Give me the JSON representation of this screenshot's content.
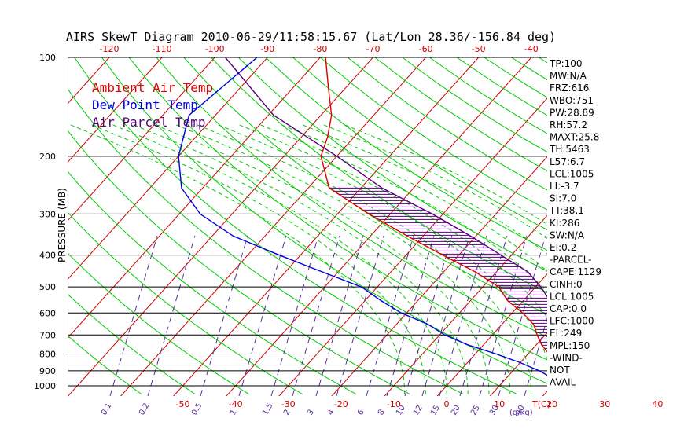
{
  "title": "AIRS SkewT Diagram 2010-06-29/11:58:15.67 (Lat/Lon 28.36/-156.84 deg)",
  "colors": {
    "ambient": "#dd0000",
    "dewpoint": "#0000dd",
    "parcel": "#55007a",
    "isotherm": "#cc0000",
    "dry_adiabat": "#00cc00",
    "moist_adiabat": "#00cc00",
    "mixing_ratio": "#5a2f9c",
    "isobar": "#000000",
    "cape_hatch": "#55007a"
  },
  "chart_data": {
    "type": "skewt",
    "title": "AIRS SkewT Diagram 2010-06-29/11:58:15.67 (Lat/Lon 28.36/-156.84 deg)",
    "ylabel": "PRESSURE (MB)",
    "xlabel_bottom_unit": "T(C)",
    "mixing_ratio_unit": "(g/kg)",
    "pressure_levels": [
      100,
      200,
      300,
      400,
      500,
      600,
      700,
      800,
      900,
      1000
    ],
    "pressure_range": [
      100,
      1050
    ],
    "top_temp_ticks": [
      -120,
      -110,
      -100,
      -90,
      -80,
      -70,
      -60,
      -50,
      -40
    ],
    "bottom_temp_ticks": [
      -50,
      -40,
      -30,
      -20,
      -10,
      0,
      10,
      20,
      30,
      40
    ],
    "mixing_ratio_ticks": [
      "0.1",
      "0.2",
      "0.5",
      "1",
      "1.5",
      "2",
      "3",
      "4",
      "6",
      "8",
      "10",
      "12",
      "15",
      "20",
      "25",
      "30",
      "40"
    ],
    "legend": [
      {
        "label": "Ambient Air Temp",
        "color_key": "ambient"
      },
      {
        "label": "Dew Point Temp",
        "color_key": "dewpoint"
      },
      {
        "label": "Air Parcel Temp",
        "color_key": "parcel"
      }
    ],
    "series": [
      {
        "name": "Ambient Air Temp",
        "color_key": "ambient",
        "points": [
          [
            100,
            -79
          ],
          [
            125,
            -73
          ],
          [
            150,
            -68
          ],
          [
            175,
            -65
          ],
          [
            200,
            -63
          ],
          [
            250,
            -56
          ],
          [
            300,
            -44
          ],
          [
            350,
            -33
          ],
          [
            400,
            -23
          ],
          [
            450,
            -14
          ],
          [
            500,
            -7
          ],
          [
            550,
            -3
          ],
          [
            600,
            2
          ],
          [
            650,
            6
          ],
          [
            700,
            8.5
          ],
          [
            750,
            11
          ],
          [
            800,
            14
          ],
          [
            850,
            17
          ],
          [
            900,
            19.5
          ],
          [
            950,
            22
          ],
          [
            1000,
            25
          ]
        ]
      },
      {
        "name": "Dew Point Temp",
        "color_key": "dewpoint",
        "points": [
          [
            100,
            -92
          ],
          [
            150,
            -95
          ],
          [
            200,
            -90
          ],
          [
            250,
            -84
          ],
          [
            300,
            -76
          ],
          [
            350,
            -66
          ],
          [
            400,
            -54
          ],
          [
            450,
            -43
          ],
          [
            500,
            -33
          ],
          [
            550,
            -27
          ],
          [
            600,
            -21
          ],
          [
            650,
            -14
          ],
          [
            700,
            -9
          ],
          [
            750,
            -3
          ],
          [
            800,
            4
          ],
          [
            850,
            10
          ],
          [
            900,
            15
          ],
          [
            950,
            19
          ],
          [
            1000,
            23
          ]
        ]
      },
      {
        "name": "Air Parcel Temp",
        "color_key": "parcel",
        "points": [
          [
            100,
            -98
          ],
          [
            150,
            -79
          ],
          [
            200,
            -60
          ],
          [
            250,
            -46
          ],
          [
            300,
            -32
          ],
          [
            350,
            -21
          ],
          [
            400,
            -12
          ],
          [
            450,
            -4
          ],
          [
            500,
            1
          ],
          [
            550,
            5
          ],
          [
            600,
            8
          ],
          [
            650,
            11
          ],
          [
            700,
            13.5
          ],
          [
            750,
            15.5
          ],
          [
            800,
            17
          ],
          [
            850,
            19
          ],
          [
            900,
            20.5
          ],
          [
            950,
            22.5
          ],
          [
            1000,
            24.5
          ]
        ]
      }
    ]
  },
  "stats": [
    "TP:100",
    "MW:N/A",
    "FRZ:616",
    "WBO:751",
    "PW:28.89",
    "RH:57.2",
    "MAXT:25.8",
    "TH:5463",
    "L57:6.7",
    "LCL:1005",
    "LI:-3.7",
    "SI:7.0",
    "TT:38.1",
    "KI:286",
    "SW:N/A",
    "EI:0.2",
    "-PARCEL-",
    "CAPE:1129",
    "CINH:0",
    "LCL:1005",
    "CAP:0.0",
    "LFC:1000",
    "EL:249",
    "MPL:150",
    "-WIND-",
    "NOT",
    "AVAIL"
  ]
}
